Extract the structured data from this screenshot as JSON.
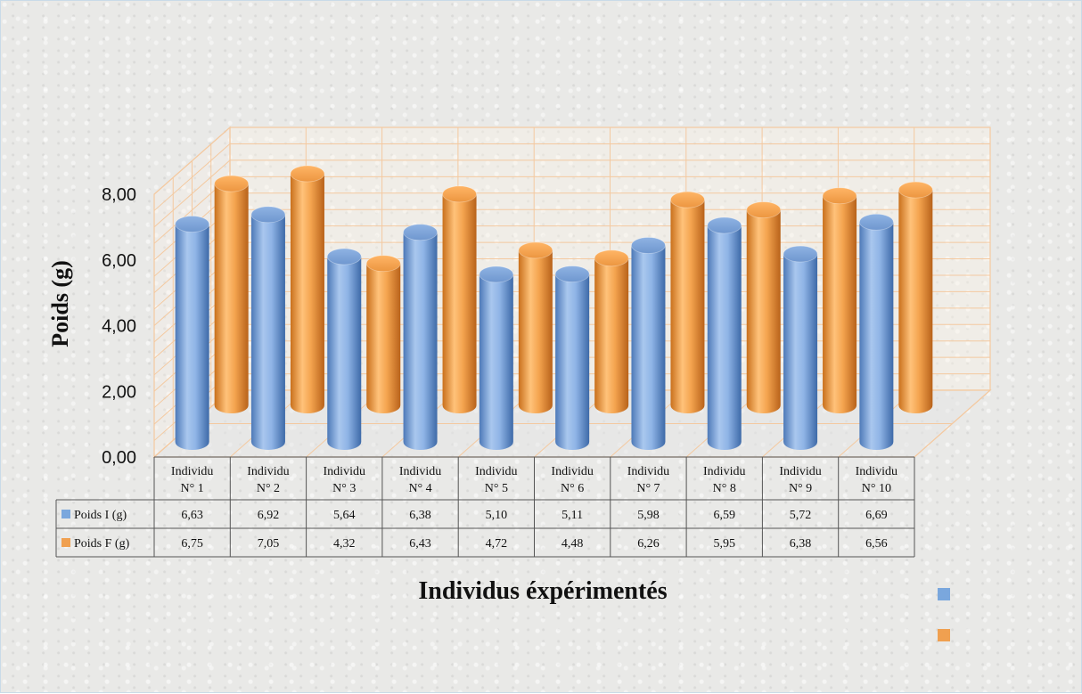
{
  "chart_data": {
    "type": "bar",
    "categories": [
      [
        "Individu",
        "N° 1"
      ],
      [
        "Individu",
        "N° 2"
      ],
      [
        "Individu",
        "N° 3"
      ],
      [
        "Individu",
        "N° 4"
      ],
      [
        "Individu",
        "N° 5"
      ],
      [
        "Individu",
        "N° 6"
      ],
      [
        "Individu",
        "N° 7"
      ],
      [
        "Individu",
        "N° 8"
      ],
      [
        "Individu",
        "N° 9"
      ],
      [
        "Individu",
        "N° 10"
      ]
    ],
    "series": [
      {
        "name": "Poids I (g)",
        "color": "#7aa7dd",
        "values": [
          6.63,
          6.92,
          5.64,
          6.38,
          5.1,
          5.11,
          5.98,
          6.59,
          5.72,
          6.69
        ],
        "table_values": [
          "6,63",
          "6,92",
          "5,64",
          "6,38",
          "5,10",
          "5,11",
          "5,98",
          "6,59",
          "5,72",
          "6,69"
        ]
      },
      {
        "name": "Poids F (g)",
        "color": "#f0a050",
        "values": [
          6.75,
          7.05,
          4.32,
          6.43,
          4.72,
          4.48,
          6.26,
          5.95,
          6.38,
          6.56
        ],
        "table_values": [
          "6,75",
          "7,05",
          "4,32",
          "6,43",
          "4,72",
          "4,48",
          "6,26",
          "5,95",
          "6,38",
          "6,56"
        ]
      }
    ],
    "ylabel": "Poids (g)",
    "xlabel": "Individus éxpérimentés",
    "ylim": [
      0,
      8
    ],
    "yticks": [
      "0,00",
      "2,00",
      "4,00",
      "6,00",
      "8,00"
    ],
    "grid": true,
    "style": "3d-cylinder",
    "data_table": true,
    "legend": "bottom-right"
  }
}
